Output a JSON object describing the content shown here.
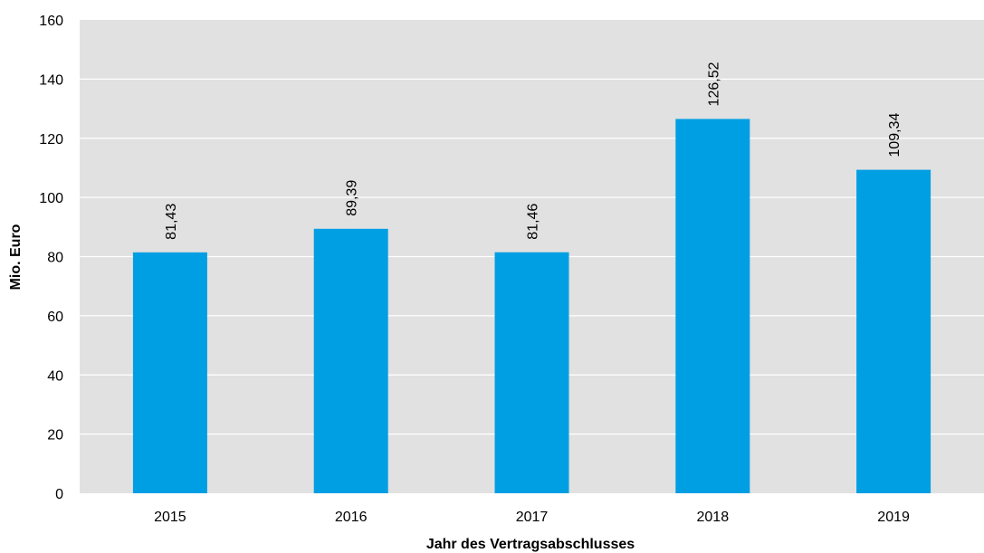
{
  "chart_data": {
    "type": "bar",
    "categories": [
      "2015",
      "2016",
      "2017",
      "2018",
      "2019"
    ],
    "values": [
      81.43,
      89.39,
      81.46,
      126.52,
      109.34
    ],
    "value_labels": [
      "81,43",
      "89,39",
      "81,46",
      "126,52",
      "109,34"
    ],
    "xlabel": "Jahr des Vertragsabschlusses",
    "ylabel": "Mio. Euro",
    "ylim": [
      0,
      160
    ],
    "yticks": [
      0,
      20,
      40,
      60,
      80,
      100,
      120,
      140,
      160
    ],
    "grid": true,
    "legend": "none",
    "colors": {
      "bar": "#009FE3",
      "plot_background": "#E1E1E1",
      "gridline": "#FFFFFF"
    }
  }
}
